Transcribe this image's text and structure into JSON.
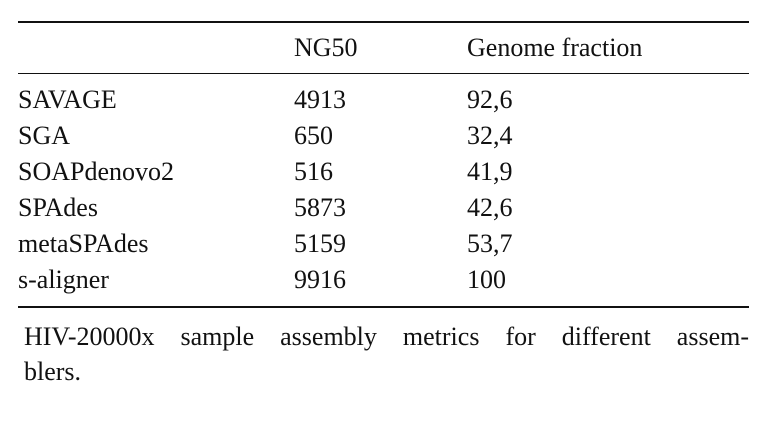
{
  "table": {
    "headers": [
      "",
      "NG50",
      "Genome fraction"
    ],
    "rows": [
      [
        "SAVAGE",
        "4913",
        "92,6"
      ],
      [
        "SGA",
        "650",
        "32,4"
      ],
      [
        "SOAPdenovo2",
        "516",
        "41,9"
      ],
      [
        "SPAdes",
        "5873",
        "42,6"
      ],
      [
        "metaSPAdes",
        "5159",
        "53,7"
      ],
      [
        "s-aligner",
        "9916",
        "100"
      ]
    ]
  },
  "caption": {
    "line1": "HIV-20000x sample assembly metrics for different assem-",
    "line2": "blers."
  }
}
